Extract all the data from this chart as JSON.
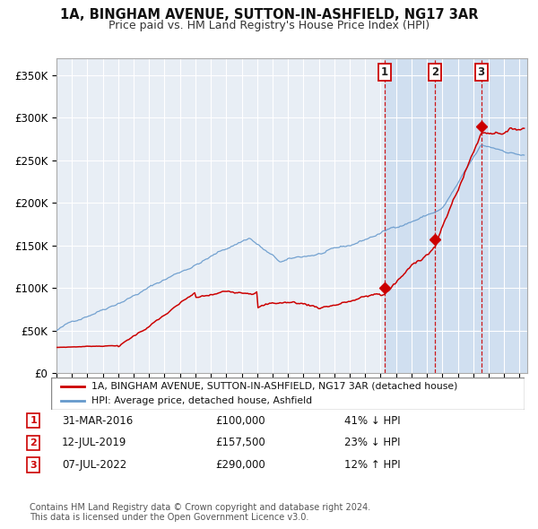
{
  "title": "1A, BINGHAM AVENUE, SUTTON-IN-ASHFIELD, NG17 3AR",
  "subtitle": "Price paid vs. HM Land Registry's House Price Index (HPI)",
  "ylim": [
    0,
    370000
  ],
  "yticks": [
    0,
    50000,
    100000,
    150000,
    200000,
    250000,
    300000,
    350000
  ],
  "ytick_labels": [
    "£0",
    "£50K",
    "£100K",
    "£150K",
    "£200K",
    "£250K",
    "£300K",
    "£350K"
  ],
  "xlim_start": 1995.0,
  "xlim_end": 2025.5,
  "sale_dates": [
    2016.247,
    2019.534,
    2022.516
  ],
  "sale_prices": [
    100000,
    157500,
    290000
  ],
  "sale_labels": [
    "1",
    "2",
    "3"
  ],
  "sale_date_strs": [
    "31-MAR-2016",
    "12-JUL-2019",
    "07-JUL-2022"
  ],
  "sale_price_strs": [
    "£100,000",
    "£157,500",
    "£290,000"
  ],
  "sale_hpi_strs": [
    "41% ↓ HPI",
    "23% ↓ HPI",
    "12% ↑ HPI"
  ],
  "house_color": "#cc0000",
  "hpi_color": "#6699cc",
  "background_color": "#ffffff",
  "plot_bg_color": "#e8eef5",
  "shade_color": "#d0dff0",
  "legend_line1": "1A, BINGHAM AVENUE, SUTTON-IN-ASHFIELD, NG17 3AR (detached house)",
  "legend_line2": "HPI: Average price, detached house, Ashfield",
  "footnote": "Contains HM Land Registry data © Crown copyright and database right 2024.\nThis data is licensed under the Open Government Licence v3.0."
}
